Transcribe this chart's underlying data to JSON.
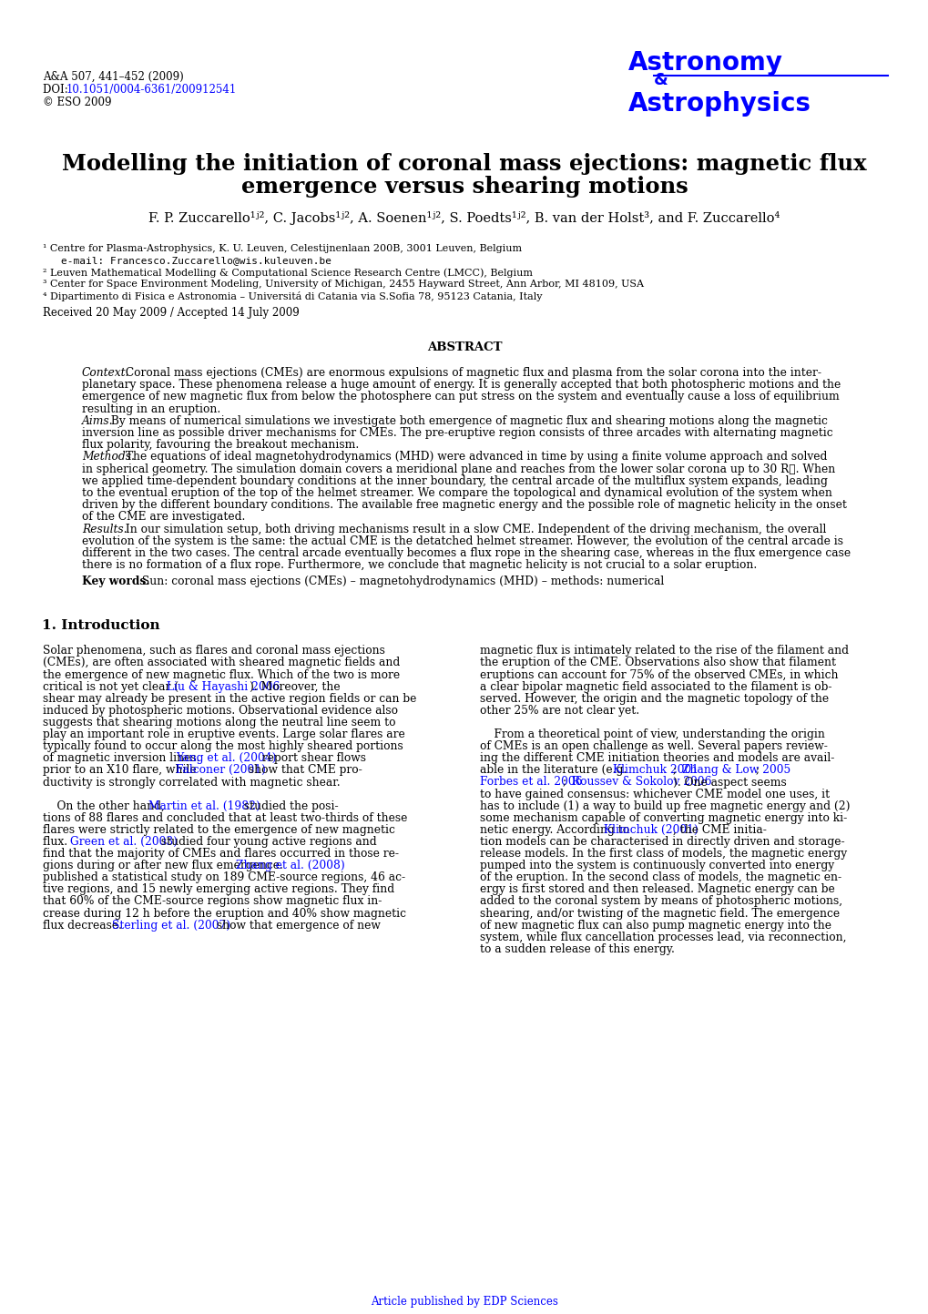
{
  "journal_info": "A&A 507, 441–452 (2009)",
  "doi_prefix": "DOI: ",
  "doi_link": "10.1051/0004-6361/200912541",
  "copyright": "© ESO 2009",
  "footer": "Article published by EDP Sciences",
  "bg_color": "#ffffff"
}
